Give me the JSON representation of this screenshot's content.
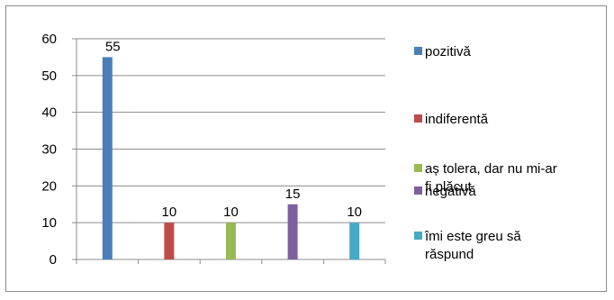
{
  "chart_data": {
    "type": "bar",
    "categories": [
      "pozitivă",
      "indiferentă",
      "aș tolera, dar nu mi-ar fi plăcut",
      "negativă",
      "îmi este greu să răspund"
    ],
    "series": [
      {
        "values": [
          55,
          10,
          10,
          15,
          10
        ],
        "colors": [
          "#4a7ebb",
          "#be4b48",
          "#98b954",
          "#7d60a0",
          "#46aac5"
        ]
      }
    ],
    "data_labels": [
      "55",
      "10",
      "10",
      "15",
      "10"
    ],
    "ylim": [
      0,
      60
    ],
    "yticks": [
      "0",
      "10",
      "20",
      "30",
      "40",
      "50",
      "60"
    ],
    "grid": true,
    "legend_position": "right",
    "legend": [
      {
        "label": "pozitivă",
        "color": "#4a7ebb"
      },
      {
        "label": "indiferentă",
        "color": "#be4b48"
      },
      {
        "label": "aș tolera, dar nu mi-ar fi plăcut",
        "color": "#98b954"
      },
      {
        "label": "negativă",
        "color": "#7d60a0"
      },
      {
        "label": "îmi este greu să răspund",
        "color": "#46aac5"
      }
    ]
  }
}
